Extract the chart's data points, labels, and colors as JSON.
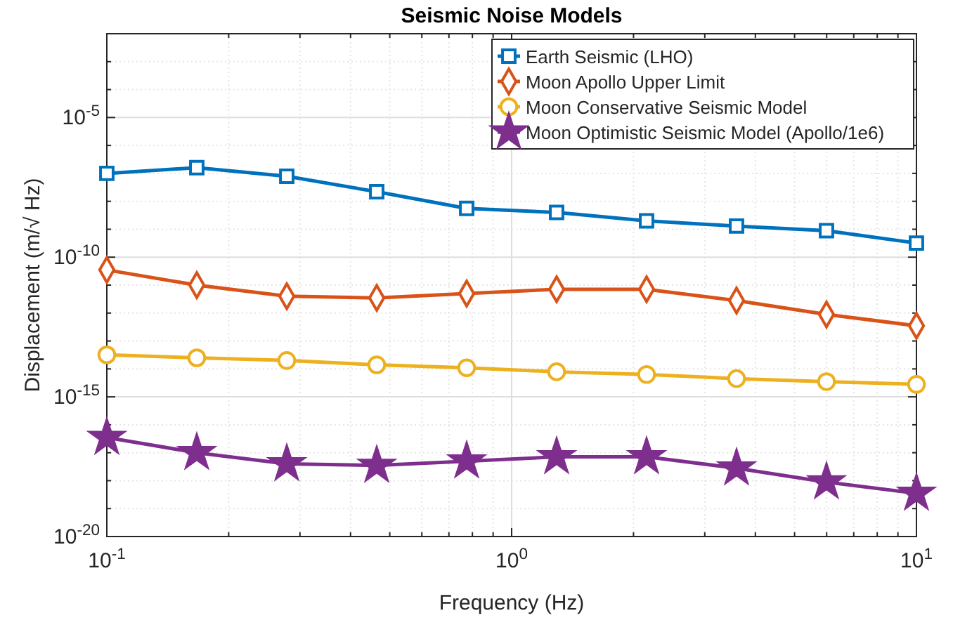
{
  "chart_data": {
    "type": "line",
    "title": "Seismic Noise Models",
    "xlabel": "Frequency (Hz)",
    "ylabel": "Displacement (m/√ Hz)",
    "log": "xy",
    "grid": true,
    "legend": "top right",
    "line_style": "solid",
    "xlim": [
      0.1,
      10
    ],
    "ylim": [
      1e-20,
      0.01
    ],
    "xticks": [
      {
        "value": 0.1,
        "label": "10$^{-1}$"
      },
      {
        "value": 0.2,
        "label": null
      },
      {
        "value": 0.3,
        "label": null
      },
      {
        "value": 0.4,
        "label": null
      },
      {
        "value": 0.5,
        "label": null
      },
      {
        "value": 0.6,
        "label": null
      },
      {
        "value": 0.7,
        "label": null
      },
      {
        "value": 0.8,
        "label": null
      },
      {
        "value": 0.9,
        "label": null
      },
      {
        "value": 1,
        "label": "10$^{0}$"
      },
      {
        "value": 2,
        "label": null
      },
      {
        "value": 3,
        "label": null
      },
      {
        "value": 4,
        "label": null
      },
      {
        "value": 5,
        "label": null
      },
      {
        "value": 6,
        "label": null
      },
      {
        "value": 7,
        "label": null
      },
      {
        "value": 8,
        "label": null
      },
      {
        "value": 9,
        "label": null
      },
      {
        "value": 10,
        "label": "10$^{1}$"
      }
    ],
    "yticks": [
      {
        "value": 1e-20,
        "label": "10$^{-20}$"
      },
      {
        "value": 1e-19,
        "label": null
      },
      {
        "value": 1e-18,
        "label": null
      },
      {
        "value": 1e-17,
        "label": null
      },
      {
        "value": 1e-16,
        "label": null
      },
      {
        "value": 1e-15,
        "label": "10$^{-15}$"
      },
      {
        "value": 1e-14,
        "label": null
      },
      {
        "value": 1e-13,
        "label": null
      },
      {
        "value": 1e-12,
        "label": null
      },
      {
        "value": 1e-11,
        "label": null
      },
      {
        "value": 1e-10,
        "label": "10$^{-10}$"
      },
      {
        "value": 1e-09,
        "label": null
      },
      {
        "value": 1e-08,
        "label": null
      },
      {
        "value": 1e-07,
        "label": null
      },
      {
        "value": 1e-06,
        "label": null
      },
      {
        "value": 1e-05,
        "label": "10$^{-5}$"
      },
      {
        "value": 0.0001,
        "label": null
      },
      {
        "value": 0.001,
        "label": null
      },
      {
        "value": 0.01,
        "label": null
      }
    ],
    "x": [
      0.1,
      0.1668,
      0.2783,
      0.4642,
      0.7743,
      1.2915,
      2.1544,
      3.5938,
      5.9948,
      10
    ],
    "series": [
      {
        "name": "Earth Seismic (LHO)",
        "color": "#0072bd",
        "marker": "square",
        "values": [
          1e-07,
          1.6e-07,
          7.9e-08,
          2.2e-08,
          5.6e-09,
          4e-09,
          2e-09,
          1.3e-09,
          8.9e-10,
          3.2e-10
        ]
      },
      {
        "name": "Moon Apollo Upper Limit",
        "color": "#d95319",
        "marker": "diamond",
        "values": [
          3.5e-11,
          1e-11,
          4e-12,
          3.5e-12,
          5e-12,
          7.1e-12,
          7.1e-12,
          2.8e-12,
          8.9e-13,
          3.5e-13
        ]
      },
      {
        "name": "Moon Conservative Seismic Model",
        "color": "#edb120",
        "marker": "circle",
        "values": [
          3.2e-14,
          2.5e-14,
          2e-14,
          1.4e-14,
          1.1e-14,
          7.9e-15,
          6.3e-15,
          4.5e-15,
          3.5e-15,
          2.8e-15
        ]
      },
      {
        "name": "Moon Optimistic Seismic Model (Apollo/1e6)",
        "color": "#7e2f8e",
        "marker": "star",
        "values": [
          3.5e-17,
          1e-17,
          4e-18,
          3.5e-18,
          5e-18,
          7.1e-18,
          7.1e-18,
          2.8e-18,
          8.9e-19,
          3.5e-19
        ]
      }
    ]
  }
}
